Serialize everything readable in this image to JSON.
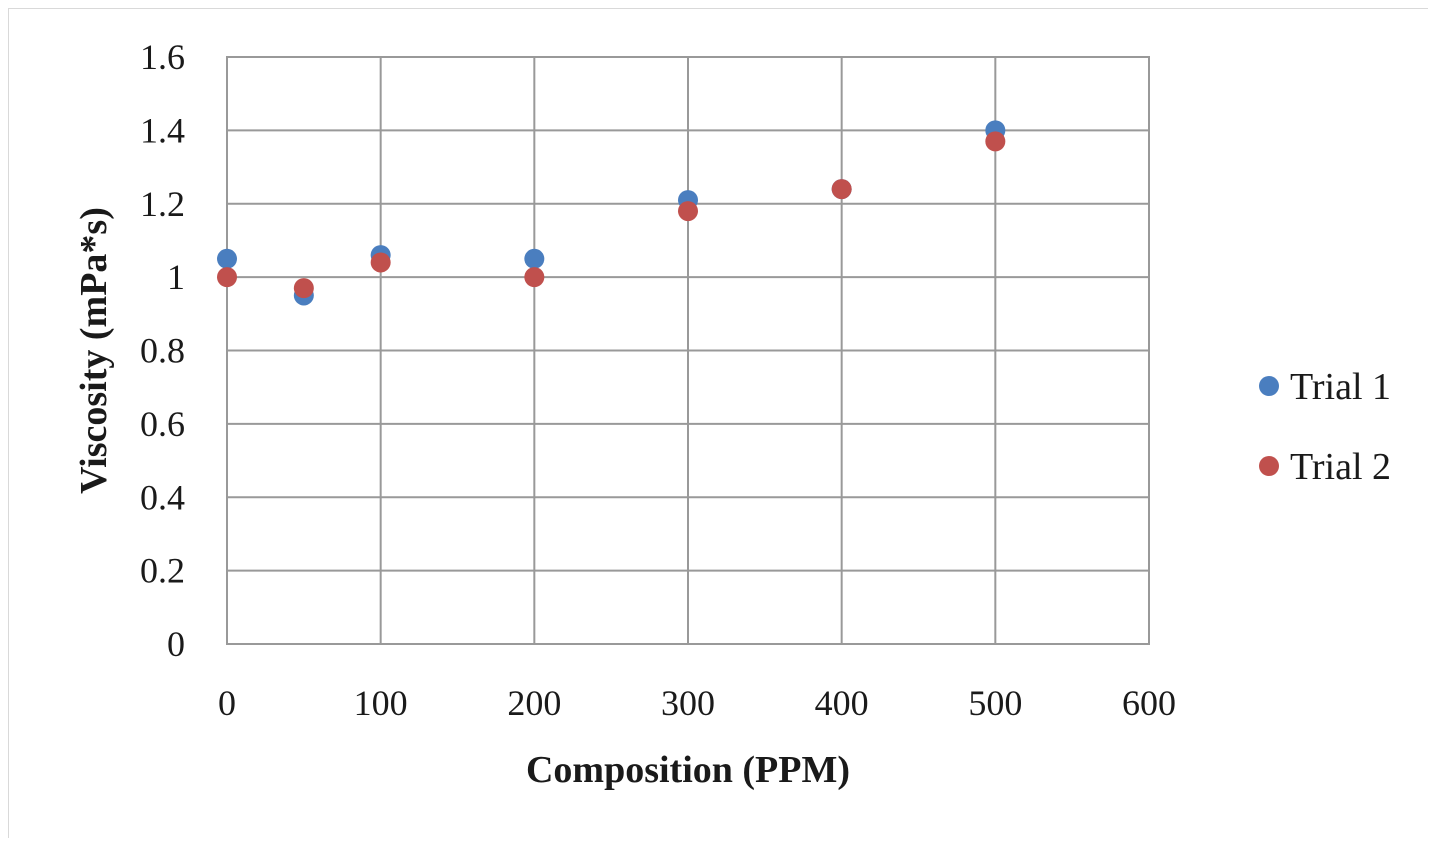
{
  "chart_data": {
    "type": "scatter",
    "title": "",
    "xlabel": "Composition (PPM)",
    "ylabel": "Viscosity (mPa*s)",
    "xlim": [
      0,
      600
    ],
    "ylim": [
      0,
      1.6
    ],
    "xticks": [
      0,
      100,
      200,
      300,
      400,
      500,
      600
    ],
    "yticks": [
      0,
      0.2,
      0.4,
      0.6,
      0.8,
      1,
      1.2,
      1.4,
      1.6
    ],
    "xtick_labels": [
      "0",
      "100",
      "200",
      "300",
      "400",
      "500",
      "600"
    ],
    "ytick_labels": [
      "0",
      "0.2",
      "0.4",
      "0.6",
      "0.8",
      "1",
      "1.2",
      "1.4",
      "1.6"
    ],
    "grid": true,
    "legend_position": "right",
    "series": [
      {
        "name": "Trial 1",
        "color": "#4a7ebf",
        "points": [
          {
            "x": 0,
            "y": 1.05
          },
          {
            "x": 50,
            "y": 0.95
          },
          {
            "x": 100,
            "y": 1.06
          },
          {
            "x": 200,
            "y": 1.05
          },
          {
            "x": 300,
            "y": 1.21
          },
          {
            "x": 400,
            "y": 1.24
          },
          {
            "x": 500,
            "y": 1.4
          }
        ]
      },
      {
        "name": "Trial 2",
        "color": "#c0504d",
        "points": [
          {
            "x": 0,
            "y": 1.0
          },
          {
            "x": 50,
            "y": 0.97
          },
          {
            "x": 100,
            "y": 1.04
          },
          {
            "x": 200,
            "y": 1.0
          },
          {
            "x": 300,
            "y": 1.18
          },
          {
            "x": 400,
            "y": 1.24
          },
          {
            "x": 500,
            "y": 1.37
          }
        ]
      }
    ]
  }
}
